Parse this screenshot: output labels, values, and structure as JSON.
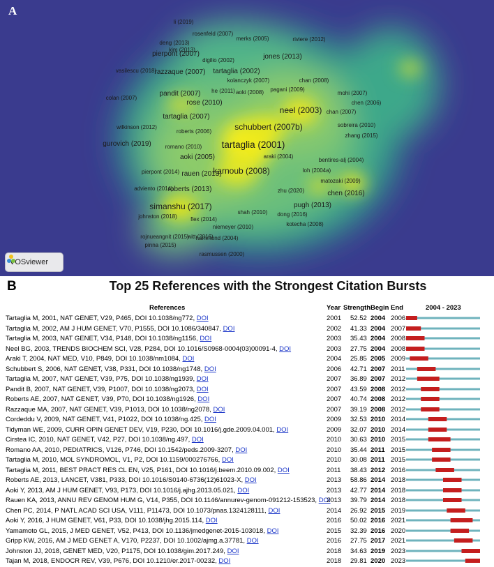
{
  "panel_a": {
    "letter": "A",
    "badge": {
      "text": "VOSviewer",
      "logo_icon": "vosviewer-logo-icon"
    },
    "colors": {
      "background": "#3a3b8e",
      "mid": "#4fb489",
      "hot": "#f2ec1a"
    }
  },
  "panel_b": {
    "letter": "B",
    "title": "Top 25 References with the Strongest Citation Bursts",
    "headers": {
      "references": "References",
      "year": "Year",
      "strength": "Strength",
      "begin": "Begin",
      "end": "End",
      "range": "2004 - 2023"
    },
    "doi_label": "DOI",
    "colors": {
      "bar": "#6fb3bd",
      "burst": "#c41e1e"
    }
  },
  "chart_data": [
    {
      "type": "density-map",
      "labels": [
        {
          "text": "li (2019)",
          "weight": 1
        },
        {
          "text": "rosenfeld (2007)",
          "weight": 1
        },
        {
          "text": "merks (2005)",
          "weight": 1
        },
        {
          "text": "riviere (2012)",
          "weight": 1
        },
        {
          "text": "deng (2013)",
          "weight": 1
        },
        {
          "text": "kim (2013)",
          "weight": 1
        },
        {
          "text": "pierpont (2007)",
          "weight": 2
        },
        {
          "text": "digilio (2002)",
          "weight": 1
        },
        {
          "text": "jones (2013)",
          "weight": 2
        },
        {
          "text": "vasilescu (2018)",
          "weight": 1
        },
        {
          "text": "razzaque (2007)",
          "weight": 2
        },
        {
          "text": "tartaglia (2002)",
          "weight": 2
        },
        {
          "text": "kolanczyk (2007)",
          "weight": 1
        },
        {
          "text": "chan (2008)",
          "weight": 1
        },
        {
          "text": "he (2011)",
          "weight": 1
        },
        {
          "text": "aoki (2008)",
          "weight": 1
        },
        {
          "text": "pagani (2009)",
          "weight": 1
        },
        {
          "text": "mohi (2007)",
          "weight": 1
        },
        {
          "text": "pandit (2007)",
          "weight": 2
        },
        {
          "text": "colan (2007)",
          "weight": 1
        },
        {
          "text": "rose (2010)",
          "weight": 2
        },
        {
          "text": "chen (2006)",
          "weight": 1
        },
        {
          "text": "neel (2003)",
          "weight": 3
        },
        {
          "text": "chan (2007)",
          "weight": 1
        },
        {
          "text": "tartaglia (2007)",
          "weight": 2
        },
        {
          "text": "wilkinson (2012)",
          "weight": 1
        },
        {
          "text": "roberts (2006)",
          "weight": 1
        },
        {
          "text": "schubbert (2007b)",
          "weight": 3
        },
        {
          "text": "sobreira (2010)",
          "weight": 1
        },
        {
          "text": "zhang (2015)",
          "weight": 1
        },
        {
          "text": "gurovich (2019)",
          "weight": 2
        },
        {
          "text": "romano (2010)",
          "weight": 1
        },
        {
          "text": "tartaglia (2001)",
          "weight": 4
        },
        {
          "text": "aoki (2005)",
          "weight": 2
        },
        {
          "text": "araki (2004)",
          "weight": 1
        },
        {
          "text": "bentires-alj (2004)",
          "weight": 1
        },
        {
          "text": "karnoub (2008)",
          "weight": 3
        },
        {
          "text": "rauen (2013)",
          "weight": 2
        },
        {
          "text": "pierpont (2014)",
          "weight": 1
        },
        {
          "text": "loh (2004a)",
          "weight": 1
        },
        {
          "text": "matozaki (2009)",
          "weight": 1
        },
        {
          "text": "adviento (2014)",
          "weight": 1
        },
        {
          "text": "roberts (2013)",
          "weight": 2
        },
        {
          "text": "zhu (2020)",
          "weight": 1
        },
        {
          "text": "chen (2016)",
          "weight": 2
        },
        {
          "text": "simanshu (2017)",
          "weight": 3
        },
        {
          "text": "pugh (2013)",
          "weight": 2
        },
        {
          "text": "shah (2010)",
          "weight": 1
        },
        {
          "text": "johnston (2018)",
          "weight": 1
        },
        {
          "text": "flex (2014)",
          "weight": 1
        },
        {
          "text": "dong (2016)",
          "weight": 1
        },
        {
          "text": "kotecha (2008)",
          "weight": 1
        },
        {
          "text": "niemeyer (2010)",
          "weight": 1
        },
        {
          "text": "rojnueangnit (2015)",
          "weight": 1
        },
        {
          "text": "witt (2016)",
          "weight": 1
        },
        {
          "text": "hammond (2004)",
          "weight": 1
        },
        {
          "text": "pinna (2015)",
          "weight": 1
        },
        {
          "text": "rasmussen (2000)",
          "weight": 1
        }
      ]
    },
    {
      "type": "table",
      "timeline_range": [
        2004,
        2023
      ],
      "rows": [
        {
          "ref": "Tartaglia M, 2001, NAT GENET, V29, P465, DOI 10.1038/ng772,",
          "year": "2001",
          "strength": "52.52",
          "begin": "2004",
          "end": "2006"
        },
        {
          "ref": "Tartaglia M, 2002, AM J HUM GENET, V70, P1555, DOI 10.1086/340847,",
          "year": "2002",
          "strength": "41.33",
          "begin": "2004",
          "end": "2007"
        },
        {
          "ref": "Tartaglia M, 2003, NAT GENET, V34, P148, DOI 10.1038/ng1156,",
          "year": "2003",
          "strength": "35.43",
          "begin": "2004",
          "end": "2008"
        },
        {
          "ref": "Neel BG, 2003, TRENDS BIOCHEM SCI, V28, P284, DOI 10.1016/S0968-0004(03)00091-4,",
          "year": "2003",
          "strength": "27.75",
          "begin": "2004",
          "end": "2008"
        },
        {
          "ref": "Araki T, 2004, NAT MED, V10, P849, DOI 10.1038/nm1084,",
          "year": "2004",
          "strength": "25.85",
          "begin": "2005",
          "end": "2009"
        },
        {
          "ref": "Schubbert S, 2006, NAT GENET, V38, P331, DOI 10.1038/ng1748,",
          "year": "2006",
          "strength": "42.71",
          "begin": "2007",
          "end": "2011"
        },
        {
          "ref": "Tartaglia M, 2007, NAT GENET, V39, P75, DOI 10.1038/ng1939,",
          "year": "2007",
          "strength": "36.89",
          "begin": "2007",
          "end": "2012"
        },
        {
          "ref": "Pandit B, 2007, NAT GENET, V39, P1007, DOI 10.1038/ng2073,",
          "year": "2007",
          "strength": "43.59",
          "begin": "2008",
          "end": "2012"
        },
        {
          "ref": "Roberts AE, 2007, NAT GENET, V39, P70, DOI 10.1038/ng1926,",
          "year": "2007",
          "strength": "40.74",
          "begin": "2008",
          "end": "2012"
        },
        {
          "ref": "Razzaque MA, 2007, NAT GENET, V39, P1013, DOI 10.1038/ng2078,",
          "year": "2007",
          "strength": "39.19",
          "begin": "2008",
          "end": "2012"
        },
        {
          "ref": "Cordeddu V, 2009, NAT GENET, V41, P1022, DOI 10.1038/ng.425,",
          "year": "2009",
          "strength": "32.53",
          "begin": "2010",
          "end": "2014"
        },
        {
          "ref": "Tidyman WE, 2009, CURR OPIN GENET DEV, V19, P230, DOI 10.1016/j.gde.2009.04.001,",
          "year": "2009",
          "strength": "32.07",
          "begin": "2010",
          "end": "2014"
        },
        {
          "ref": "Cirstea IC, 2010, NAT GENET, V42, P27, DOI 10.1038/ng.497,",
          "year": "2010",
          "strength": "30.63",
          "begin": "2010",
          "end": "2015"
        },
        {
          "ref": "Romano AA, 2010, PEDIATRICS, V126, P746, DOI 10.1542/peds.2009-3207,",
          "year": "2010",
          "strength": "35.44",
          "begin": "2011",
          "end": "2015"
        },
        {
          "ref": "Tartaglia M, 2010, MOL SYNDROMOL, V1, P2, DOI 10.1159/000276766,",
          "year": "2010",
          "strength": "30.08",
          "begin": "2011",
          "end": "2015"
        },
        {
          "ref": "Tartaglia M, 2011, BEST PRACT RES CL EN, V25, P161, DOI 10.1016/j.beem.2010.09.002,",
          "year": "2011",
          "strength": "38.43",
          "begin": "2012",
          "end": "2016"
        },
        {
          "ref": "Roberts AE, 2013, LANCET, V381, P333, DOI 10.1016/S0140-6736(12)61023-X,",
          "year": "2013",
          "strength": "58.86",
          "begin": "2014",
          "end": "2018"
        },
        {
          "ref": "Aoki Y, 2013, AM J HUM GENET, V93, P173, DOI 10.1016/j.ajhg.2013.05.021,",
          "year": "2013",
          "strength": "42.77",
          "begin": "2014",
          "end": "2018"
        },
        {
          "ref": "Rauen KA, 2013, ANNU REV GENOM HUM G, V14, P355, DOI 10.1146/annurev-genom-091212-153523,",
          "year": "2013",
          "strength": "39.79",
          "begin": "2014",
          "end": "2018"
        },
        {
          "ref": "Chen PC, 2014, P NATL ACAD SCI USA, V111, P11473, DOI 10.1073/pnas.1324128111,",
          "year": "2014",
          "strength": "26.92",
          "begin": "2015",
          "end": "2019"
        },
        {
          "ref": "Aoki Y, 2016, J HUM GENET, V61, P33, DOI 10.1038/jhg.2015.114,",
          "year": "2016",
          "strength": "50.02",
          "begin": "2016",
          "end": "2021"
        },
        {
          "ref": "Yamamoto GL, 2015, J MED GENET, V52, P413, DOI 10.1136/jmedgenet-2015-103018,",
          "year": "2015",
          "strength": "32.39",
          "begin": "2016",
          "end": "2020"
        },
        {
          "ref": "Gripp KW, 2016, AM J MED GENET A, V170, P2237, DOI 10.1002/ajmg.a.37781,",
          "year": "2016",
          "strength": "27.75",
          "begin": "2017",
          "end": "2021"
        },
        {
          "ref": "Johnston JJ, 2018, GENET MED, V20, P1175, DOI 10.1038/gim.2017.249,",
          "year": "2018",
          "strength": "34.63",
          "begin": "2019",
          "end": "2023"
        },
        {
          "ref": "Tajan M, 2018, ENDOCR REV, V39, P676, DOI 10.1210/er.2017-00232,",
          "year": "2018",
          "strength": "29.81",
          "begin": "2020",
          "end": "2023"
        }
      ]
    }
  ]
}
